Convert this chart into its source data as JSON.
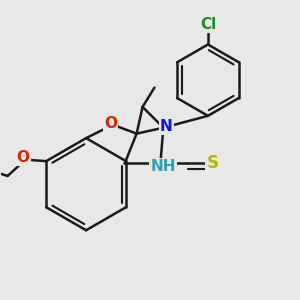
{
  "background_color": "#e8e8e8",
  "bond_color": "#1a1a1a",
  "bond_width": 1.8,
  "atoms": {
    "N1": {
      "color": "#1010ee",
      "label": "N",
      "fontsize": 11
    },
    "N2": {
      "color": "#30a0b0",
      "label": "NH",
      "fontsize": 11
    },
    "O1": {
      "color": "#dd2200",
      "label": "O",
      "fontsize": 11
    },
    "O2": {
      "color": "#dd2200",
      "label": "O",
      "fontsize": 11
    },
    "S1": {
      "color": "#b8b800",
      "label": "S",
      "fontsize": 12
    },
    "Cl1": {
      "color": "#228B22",
      "label": "Cl",
      "fontsize": 11
    }
  },
  "fig_width": 3.0,
  "fig_height": 3.0,
  "dpi": 100
}
